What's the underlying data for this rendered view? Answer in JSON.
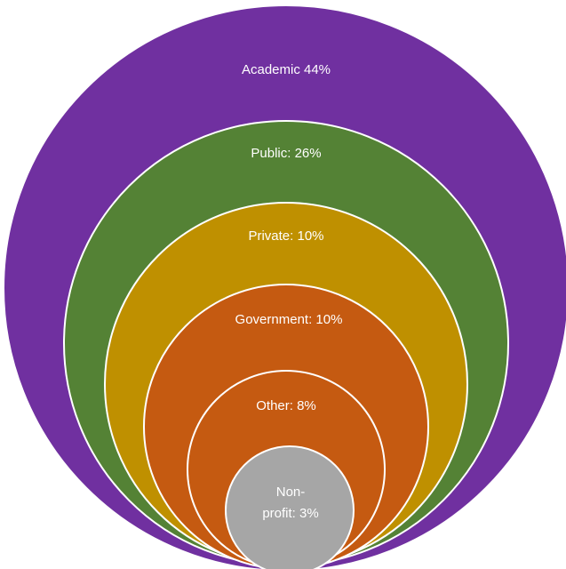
{
  "diagram": {
    "type": "nested-circles",
    "rings": [
      {
        "label": "Academic 44%",
        "category": "Academic",
        "percent": 44,
        "color": "#7030a0"
      },
      {
        "label": "Public: 26%",
        "category": "Public",
        "percent": 26,
        "color": "#548235"
      },
      {
        "label": "Private: 10%",
        "category": "Private",
        "percent": 10,
        "color": "#bf9000"
      },
      {
        "label": "Government: 10%",
        "category": "Government",
        "percent": 10,
        "color": "#c55a11"
      },
      {
        "label": "Other: 8%",
        "category": "Other",
        "percent": 8,
        "color": "#c55a11"
      },
      {
        "label_lines": [
          "Non-",
          "profit: 3%"
        ],
        "category": "Non-profit",
        "percent": 3,
        "color": "#a6a6a6"
      }
    ],
    "outline_color": "#ffffff"
  }
}
